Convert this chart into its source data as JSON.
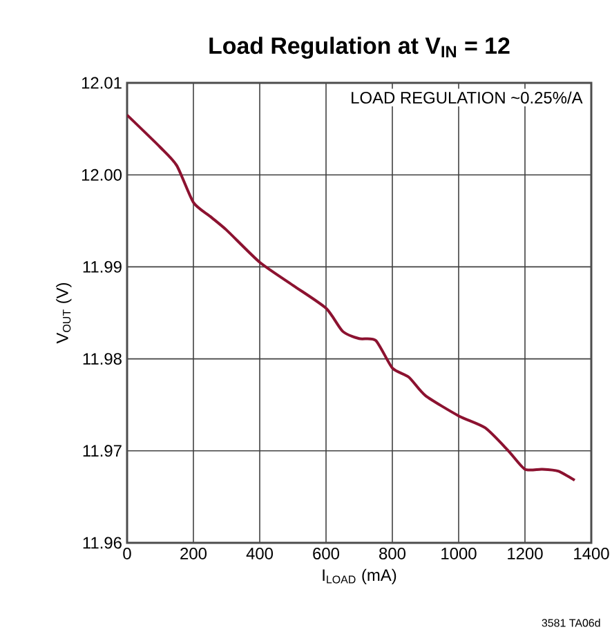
{
  "chart_data": {
    "type": "line",
    "title": "**Load Regulation at V$_{IN}$ = 12**",
    "xlabel": "I$_{LOAD}$ (mA)",
    "ylabel": "V$_{OUT}$ (V)",
    "annotations": [
      "LOAD REGULATION ~0.25%/A",
      "3581 TA06d"
    ],
    "x": [
      0,
      100,
      150,
      200,
      250,
      300,
      400,
      500,
      600,
      650,
      700,
      750,
      800,
      850,
      900,
      1000,
      1080,
      1150,
      1200,
      1250,
      1300,
      1350
    ],
    "series": [
      {
        "color": "#8c1230",
        "values": [
          12.0065,
          12.003,
          12.001,
          11.997,
          11.9955,
          11.994,
          11.9905,
          11.988,
          11.9855,
          11.983,
          11.9822,
          11.982,
          11.979,
          11.978,
          11.976,
          11.9738,
          11.9725,
          11.97,
          11.968,
          11.968,
          11.9678,
          11.9668
        ]
      }
    ],
    "xlim": [
      0,
      1400
    ],
    "ylim": [
      11.96,
      12.01
    ],
    "xticks": [
      0,
      200,
      400,
      600,
      800,
      1000,
      1200,
      1400
    ],
    "yticks": [
      {
        "value": 11.96,
        "label": "11.96"
      },
      {
        "value": 11.97,
        "label": "11.97"
      },
      {
        "value": 11.98,
        "label": "11.98"
      },
      {
        "value": 11.99,
        "label": "11.99"
      },
      {
        "value": 12.0,
        "label": "12.00"
      },
      {
        "value": 12.01,
        "label": "12.01"
      }
    ],
    "grid": true,
    "marker": "none",
    "line_style": "solid"
  }
}
